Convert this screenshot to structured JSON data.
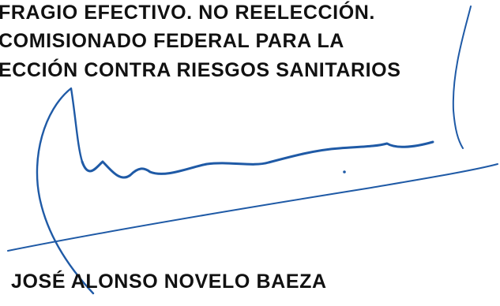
{
  "document": {
    "lines": [
      "FRAGIO EFECTIVO. NO REELECCIÓN.",
      "COMISIONADO FEDERAL PARA LA",
      "ECCIÓN CONTRA RIESGOS SANITARIOS"
    ],
    "signatory_name": "JOSÉ ALONSO NOVELO BAEZA"
  },
  "colors": {
    "text": "#111111",
    "ink": "#1f5aa6",
    "background": "#ffffff"
  }
}
